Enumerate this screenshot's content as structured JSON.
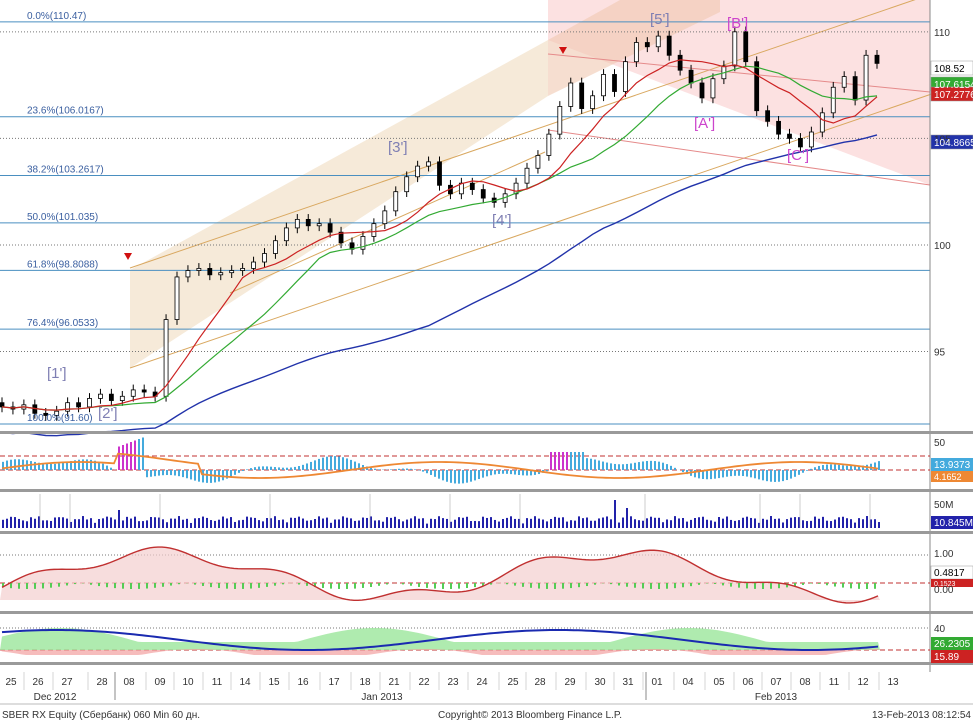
{
  "chart_data": [
    {
      "type": "candlestick",
      "panel": "price",
      "ylim": [
        91.6,
        111.4
      ],
      "y_ticks": [
        95,
        100,
        105,
        110
      ],
      "fib_levels": [
        {
          "label": "0.0%(110.47)",
          "value": 110.47
        },
        {
          "label": "23.6%(106.0167)",
          "value": 106.0167
        },
        {
          "label": "38.2%(103.2617)",
          "value": 103.2617
        },
        {
          "label": "50.0%(101.035)",
          "value": 101.035
        },
        {
          "label": "61.8%(98.8088)",
          "value": 98.8088
        },
        {
          "label": "76.4%(96.0533)",
          "value": 96.0533
        },
        {
          "label": "100.0%(91.60)",
          "value": 91.6
        }
      ],
      "wave_labels": [
        {
          "text": "[1']",
          "color": "#7f7fb3"
        },
        {
          "text": "[2']",
          "color": "#7f7fb3"
        },
        {
          "text": "[3']",
          "color": "#7f7fb3"
        },
        {
          "text": "[4']",
          "color": "#7f7fb3"
        },
        {
          "text": "[5']",
          "color": "#7f7fb3"
        },
        {
          "text": "[A']",
          "color": "#cc44cc"
        },
        {
          "text": "[B']",
          "color": "#cc44cc"
        },
        {
          "text": "[C']",
          "color": "#cc44cc"
        }
      ],
      "last_values": [
        {
          "text": "108.52",
          "bg": "#ffffff",
          "fg": "#000000"
        },
        {
          "text": "107.6154",
          "bg": "#33aa33",
          "fg": "#ffffff"
        },
        {
          "text": "107.2776",
          "bg": "#cc2222",
          "fg": "#ffffff"
        },
        {
          "text": "104.8665",
          "bg": "#2233aa",
          "fg": "#ffffff"
        }
      ],
      "candles_close": [
        92.4,
        92.3,
        92.5,
        92.1,
        92.0,
        92.2,
        92.6,
        92.4,
        92.8,
        93.0,
        92.7,
        92.9,
        93.2,
        93.1,
        92.9,
        96.5,
        98.5,
        98.8,
        98.9,
        98.6,
        98.7,
        98.8,
        98.9,
        99.2,
        99.6,
        100.2,
        100.8,
        101.2,
        100.9,
        101.0,
        100.6,
        100.1,
        99.8,
        100.4,
        101.0,
        101.6,
        102.5,
        103.2,
        103.7,
        103.9,
        102.8,
        102.4,
        102.9,
        102.6,
        102.2,
        102.0,
        102.4,
        102.9,
        103.6,
        104.2,
        105.2,
        106.5,
        107.6,
        106.4,
        107.0,
        108.0,
        107.2,
        108.6,
        109.5,
        109.3,
        109.8,
        108.9,
        108.2,
        107.6,
        106.9,
        107.8,
        108.4,
        110.0,
        108.6,
        106.3,
        105.8,
        105.2,
        105.0,
        104.6,
        105.3,
        106.2,
        107.4,
        107.9,
        106.8,
        108.9,
        108.52
      ],
      "series": [
        {
          "name": "MA",
          "color": "#cc2222",
          "last": 107.2776
        },
        {
          "name": "MA",
          "color": "#33aa33",
          "last": 107.6154
        },
        {
          "name": "MA",
          "color": "#2233aa",
          "last": 104.8665
        }
      ]
    },
    {
      "type": "bar",
      "panel": "indicator-1",
      "ticks": [
        "50"
      ],
      "last_values": [
        {
          "text": "13.9373",
          "bg": "#44aadd",
          "fg": "#ffffff"
        },
        {
          "text": "4.1652",
          "bg": "#ee8833",
          "fg": "#ffffff"
        }
      ]
    },
    {
      "type": "bar",
      "panel": "volume",
      "ticks": [
        "50M"
      ],
      "last_values": [
        {
          "text": "10.845M",
          "bg": "#2222aa",
          "fg": "#ffffff"
        }
      ]
    },
    {
      "type": "area",
      "panel": "indicator-2",
      "ticks": [
        "1.00",
        "0.00"
      ],
      "last_values": [
        {
          "text": "0.4817",
          "bg": "#ffffff",
          "fg": "#000000"
        },
        {
          "text": "0.1523",
          "bg": "#cc2222",
          "fg": "#ffffff"
        }
      ]
    },
    {
      "type": "area",
      "panel": "indicator-3",
      "ticks": [
        "40"
      ],
      "last_values": [
        {
          "text": "26.2305",
          "bg": "#33aa33",
          "fg": "#ffffff"
        },
        {
          "text": "15.89",
          "bg": "#cc2222",
          "fg": "#ffffff"
        }
      ]
    }
  ],
  "x_axis": {
    "day_labels": [
      "25",
      "26",
      "27",
      "28",
      "08",
      "09",
      "10",
      "11",
      "14",
      "15",
      "16",
      "17",
      "18",
      "21",
      "22",
      "23",
      "24",
      "25",
      "28",
      "29",
      "30",
      "31",
      "01",
      "04",
      "05",
      "06",
      "07",
      "08",
      "11",
      "12",
      "13"
    ],
    "month_labels": [
      "Dec 2012",
      "Jan 2013",
      "Feb 2013"
    ]
  },
  "footer": {
    "left": "SBER RX Equity (Сбербанк) 060 Min 60 дн.",
    "center": "Copyright© 2013 Bloomberg Finance L.P.",
    "right": "13-Feb-2013 08:12:54"
  }
}
